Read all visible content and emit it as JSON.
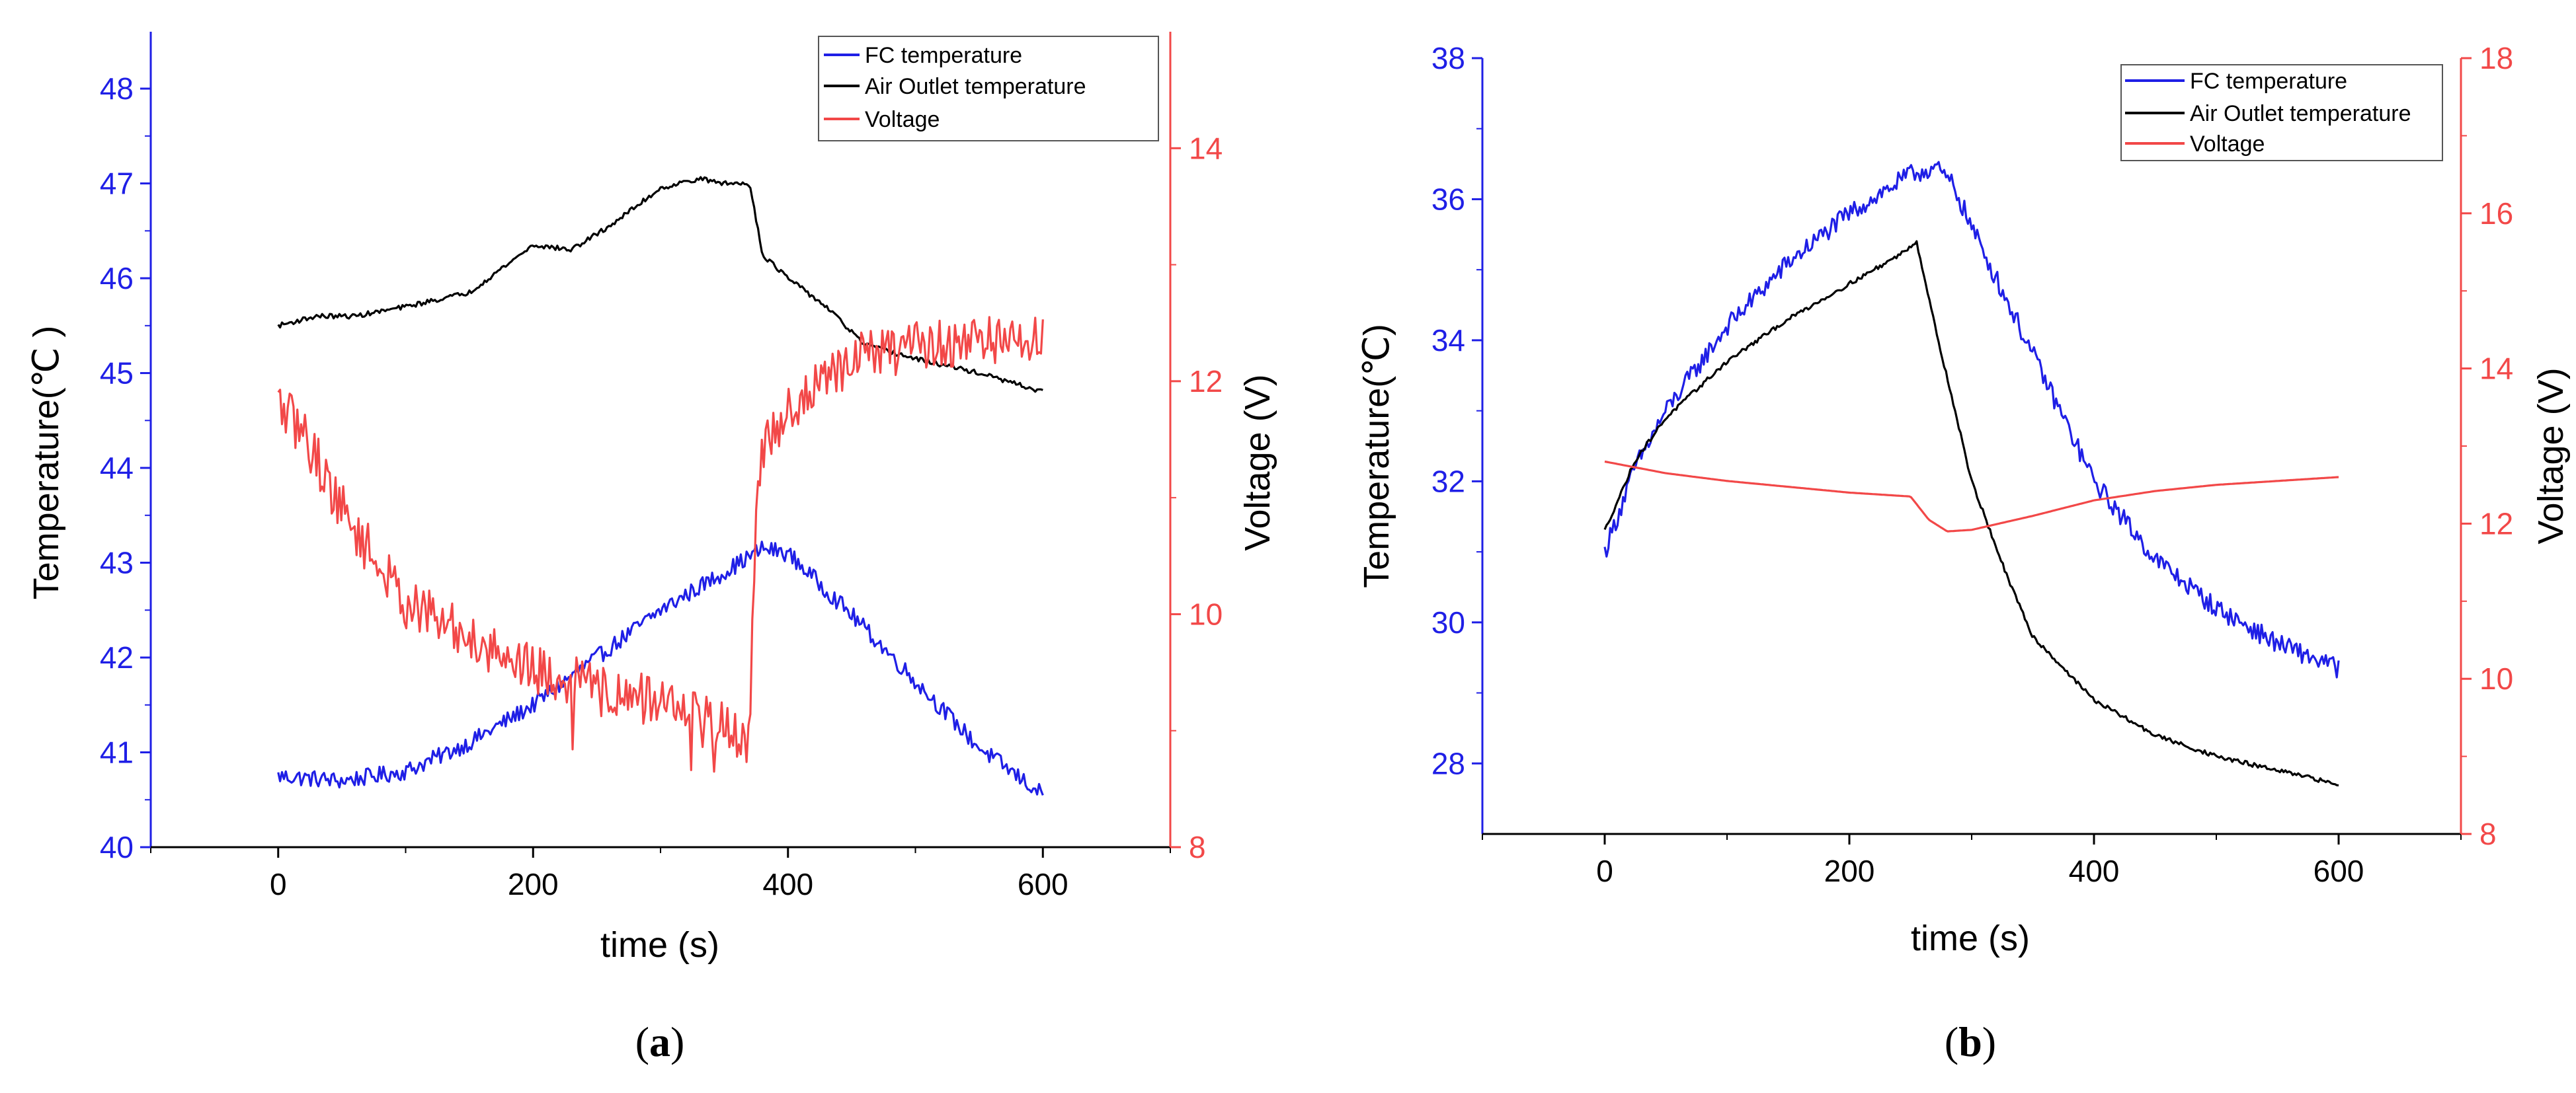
{
  "chart_data": [
    {
      "type": "line",
      "panel_label_open": "(",
      "panel_label_letter": "a",
      "panel_label_close": ")",
      "xlabel": "time (s)",
      "ylabel_left": "Temperature(℃ )",
      "ylabel_right": "Voltage (V)",
      "xlim": [
        -100,
        700
      ],
      "ylim_left": [
        40,
        48.6
      ],
      "ylim_right": [
        8,
        15
      ],
      "x_ticks": [
        "0",
        "200",
        "400",
        "600"
      ],
      "y_ticks_left": [
        "40",
        "41",
        "42",
        "43",
        "44",
        "45",
        "46",
        "47",
        "48"
      ],
      "y_ticks_right": [
        "8",
        "10",
        "12",
        "14"
      ],
      "legend_position": "top-right",
      "series": [
        {
          "name": "FC temperature",
          "axis": "left",
          "color": "#1f1fe6",
          "noise": 0.09,
          "x": [
            0,
            50,
            100,
            150,
            200,
            250,
            300,
            350,
            380,
            400,
            450,
            500,
            550,
            600
          ],
          "y": [
            40.75,
            40.7,
            40.8,
            41.1,
            41.5,
            42.0,
            42.5,
            42.9,
            43.15,
            43.1,
            42.45,
            41.75,
            41.05,
            40.55
          ]
        },
        {
          "name": "Air Outlet temperature",
          "axis": "left",
          "color": "#000000",
          "noise": 0.025,
          "x": [
            0,
            30,
            60,
            100,
            150,
            200,
            230,
            260,
            300,
            330,
            350,
            370,
            380,
            400,
            430,
            460,
            500,
            550,
            600
          ],
          "y": [
            45.5,
            45.6,
            45.6,
            45.7,
            45.85,
            46.35,
            46.3,
            46.55,
            46.95,
            47.05,
            47.0,
            47.0,
            46.25,
            46.0,
            45.7,
            45.3,
            45.15,
            45.0,
            44.8
          ]
        },
        {
          "name": "Voltage",
          "axis": "right",
          "color": "#f24848",
          "noise": 0.22,
          "x": [
            0,
            20,
            50,
            80,
            100,
            150,
            200,
            250,
            300,
            330,
            360,
            370,
            375,
            380,
            400,
            430,
            450,
            500,
            550,
            600
          ],
          "y": [
            11.8,
            11.55,
            10.9,
            10.4,
            10.1,
            9.8,
            9.55,
            9.35,
            9.25,
            9.15,
            8.95,
            8.9,
            11.0,
            11.4,
            11.75,
            12.0,
            12.2,
            12.3,
            12.35,
            12.35
          ]
        }
      ]
    },
    {
      "type": "line",
      "panel_label_open": "(",
      "panel_label_letter": "b",
      "panel_label_close": ")",
      "xlabel": "time (s)",
      "ylabel_left": "Temperature(℃)",
      "ylabel_right": "Voltage (V)",
      "xlim": [
        -100,
        700
      ],
      "ylim_left": [
        27,
        38
      ],
      "ylim_right": [
        8,
        18
      ],
      "x_ticks": [
        "0",
        "200",
        "400",
        "600"
      ],
      "y_ticks_left": [
        "28",
        "30",
        "32",
        "34",
        "36",
        "38"
      ],
      "y_ticks_right": [
        "8",
        "10",
        "12",
        "14",
        "16",
        "18"
      ],
      "legend_position": "top-right",
      "series": [
        {
          "name": "FC temperature",
          "axis": "left",
          "color": "#1f1fe6",
          "noise": 0.14,
          "x": [
            0,
            25,
            50,
            100,
            150,
            200,
            250,
            270,
            285,
            300,
            350,
            400,
            450,
            500,
            550,
            600
          ],
          "y": [
            31.0,
            32.2,
            33.0,
            34.2,
            35.1,
            35.8,
            36.35,
            36.45,
            36.2,
            35.6,
            33.8,
            32.0,
            30.9,
            30.2,
            29.7,
            29.35
          ]
        },
        {
          "name": "Air Outlet temperature",
          "axis": "left",
          "color": "#000000",
          "noise": 0.03,
          "x": [
            0,
            25,
            50,
            100,
            150,
            200,
            240,
            255,
            270,
            300,
            330,
            350,
            400,
            450,
            500,
            550,
            600
          ],
          "y": [
            31.3,
            32.3,
            32.9,
            33.7,
            34.3,
            34.8,
            35.2,
            35.4,
            34.2,
            32.0,
            30.6,
            29.8,
            28.9,
            28.4,
            28.1,
            27.9,
            27.7
          ]
        },
        {
          "name": "Voltage",
          "axis": "right",
          "color": "#f24848",
          "noise": 0.0,
          "x": [
            0,
            50,
            100,
            200,
            250,
            265,
            280,
            300,
            350,
            400,
            450,
            500,
            550,
            600
          ],
          "y": [
            12.8,
            12.65,
            12.55,
            12.4,
            12.35,
            12.05,
            11.9,
            11.92,
            12.1,
            12.3,
            12.42,
            12.5,
            12.55,
            12.6
          ]
        }
      ]
    }
  ]
}
